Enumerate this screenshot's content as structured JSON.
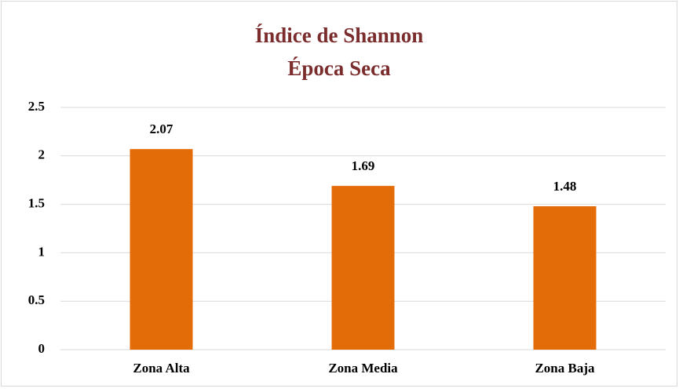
{
  "chart_data": {
    "type": "bar",
    "title": "Índice de Shannon",
    "subtitle": "Época Seca",
    "categories": [
      "Zona Alta",
      "Zona Media",
      "Zona Baja"
    ],
    "values": [
      2.07,
      1.69,
      1.48
    ],
    "color": "#e36c09",
    "ylim": [
      0,
      2.5
    ],
    "yticks": [
      0,
      0.5,
      1,
      1.5,
      2,
      2.5
    ],
    "grid": true
  }
}
